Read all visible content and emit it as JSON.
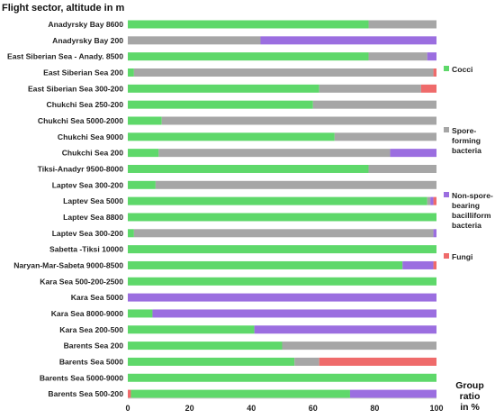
{
  "chart_data": {
    "type": "bar",
    "orientation": "horizontal",
    "stacked": true,
    "title": "Flight sector, altitude in m",
    "xlabel": "Group ratio in %",
    "ylabel": "",
    "xlim": [
      0,
      100
    ],
    "xticks": [
      "0",
      "20",
      "40",
      "60",
      "80",
      "100"
    ],
    "grid": false,
    "legend_position": "right",
    "categories": [
      "Anadyrsky Bay 8600",
      "Anadyrsky Bay 200",
      "East Siberian Sea - Anady. 8500",
      "East Siberian Sea 200",
      "East Siberian Sea 300-200",
      "Chukchi Sea 250-200",
      "Chukchi Sea 5000-2000",
      "Chukchi Sea 9000",
      "Chukchi Sea 200",
      "Tiksi-Anadyr 9500-8000",
      "Laptev Sea 300-200",
      "Laptev Sea 5000",
      "Laptev Sea 8800",
      "Laptev Sea 300-200",
      "Sabetta -Tiksi 10000",
      "Naryan-Mar-Sabeta 9000-8500",
      "Kara Sea 500-200-2500",
      "Kara Sea 5000",
      "Kara Sea 8000-9000",
      "Kara Sea 200-500",
      "Barents Sea 200",
      "Barents Sea 5000",
      "Barents Sea 5000-9000",
      "Barents Sea 500-200"
    ],
    "series": [
      {
        "name": "Cocci",
        "color": "#5ed86a",
        "values": [
          78,
          0,
          78,
          2,
          62,
          60,
          11,
          67,
          10,
          78,
          9,
          97,
          100,
          2,
          100,
          89,
          100,
          0,
          8,
          41,
          50,
          54,
          100,
          71
        ]
      },
      {
        "name": "Spore-forming bacteria",
        "color": "#a6a6a6",
        "values": [
          22,
          43,
          19,
          97,
          33,
          40,
          89,
          33,
          75,
          22,
          91,
          1,
          0,
          97,
          0,
          0,
          0,
          0,
          0,
          0,
          50,
          8,
          0,
          0
        ]
      },
      {
        "name": "Non-spore-bearing bacilliform bacteria",
        "color": "#9b6ee0",
        "values": [
          0,
          57,
          3,
          0,
          0,
          0,
          0,
          0,
          15,
          0,
          0,
          1,
          0,
          1,
          0,
          10,
          0,
          100,
          92,
          59,
          0,
          0,
          0,
          28
        ]
      },
      {
        "name": "Fungi",
        "color": "#ef6b6b",
        "values": [
          0,
          0,
          0,
          1,
          5,
          0,
          0,
          0,
          0,
          0,
          0,
          1,
          0,
          0,
          0,
          1,
          0,
          0,
          0,
          0,
          0,
          38,
          0,
          1
        ]
      }
    ],
    "segment_order_per_row": [
      [
        "Cocci",
        "Spore-forming bacteria",
        "Non-spore-bearing bacilliform bacteria",
        "Fungi"
      ],
      [
        "Cocci",
        "Spore-forming bacteria",
        "Non-spore-bearing bacilliform bacteria",
        "Fungi"
      ],
      [
        "Cocci",
        "Spore-forming bacteria",
        "Non-spore-bearing bacilliform bacteria",
        "Fungi"
      ],
      [
        "Cocci",
        "Spore-forming bacteria",
        "Non-spore-bearing bacilliform bacteria",
        "Fungi"
      ],
      [
        "Cocci",
        "Spore-forming bacteria",
        "Non-spore-bearing bacilliform bacteria",
        "Fungi"
      ],
      [
        "Cocci",
        "Spore-forming bacteria",
        "Non-spore-bearing bacilliform bacteria",
        "Fungi"
      ],
      [
        "Cocci",
        "Spore-forming bacteria",
        "Non-spore-bearing bacilliform bacteria",
        "Fungi"
      ],
      [
        "Cocci",
        "Spore-forming bacteria",
        "Non-spore-bearing bacilliform bacteria",
        "Fungi"
      ],
      [
        "Cocci",
        "Spore-forming bacteria",
        "Non-spore-bearing bacilliform bacteria",
        "Fungi"
      ],
      [
        "Cocci",
        "Spore-forming bacteria",
        "Non-spore-bearing bacilliform bacteria",
        "Fungi"
      ],
      [
        "Cocci",
        "Spore-forming bacteria",
        "Non-spore-bearing bacilliform bacteria",
        "Fungi"
      ],
      [
        "Cocci",
        "Spore-forming bacteria",
        "Non-spore-bearing bacilliform bacteria",
        "Fungi"
      ],
      [
        "Cocci",
        "Spore-forming bacteria",
        "Non-spore-bearing bacilliform bacteria",
        "Fungi"
      ],
      [
        "Cocci",
        "Spore-forming bacteria",
        "Non-spore-bearing bacilliform bacteria",
        "Fungi"
      ],
      [
        "Cocci",
        "Spore-forming bacteria",
        "Non-spore-bearing bacilliform bacteria",
        "Fungi"
      ],
      [
        "Cocci",
        "Spore-forming bacteria",
        "Non-spore-bearing bacilliform bacteria",
        "Fungi"
      ],
      [
        "Cocci",
        "Spore-forming bacteria",
        "Non-spore-bearing bacilliform bacteria",
        "Fungi"
      ],
      [
        "Cocci",
        "Spore-forming bacteria",
        "Non-spore-bearing bacilliform bacteria",
        "Fungi"
      ],
      [
        "Cocci",
        "Spore-forming bacteria",
        "Non-spore-bearing bacilliform bacteria",
        "Fungi"
      ],
      [
        "Cocci",
        "Spore-forming bacteria",
        "Non-spore-bearing bacilliform bacteria",
        "Fungi"
      ],
      [
        "Cocci",
        "Spore-forming bacteria",
        "Non-spore-bearing bacilliform bacteria",
        "Fungi"
      ],
      [
        "Cocci",
        "Spore-forming bacteria",
        "Non-spore-bearing bacilliform bacteria",
        "Fungi"
      ],
      [
        "Cocci",
        "Spore-forming bacteria",
        "Non-spore-bearing bacilliform bacteria",
        "Fungi"
      ],
      [
        "Fungi",
        "Cocci",
        "Spore-forming bacteria",
        "Non-spore-bearing bacilliform bacteria"
      ]
    ],
    "legend": [
      {
        "lines": [
          "Cocci"
        ],
        "color": "#5ed86a"
      },
      {
        "lines": [
          "Spore-",
          "forming",
          "bacteria"
        ],
        "color": "#a6a6a6"
      },
      {
        "lines": [
          "Non-spore-",
          "bearing",
          "bacilliform",
          "bacteria"
        ],
        "color": "#9b6ee0"
      },
      {
        "lines": [
          "Fungi"
        ],
        "color": "#ef6b6b"
      }
    ],
    "xlabel_lines": [
      "Group",
      "ratio",
      "in %"
    ]
  }
}
